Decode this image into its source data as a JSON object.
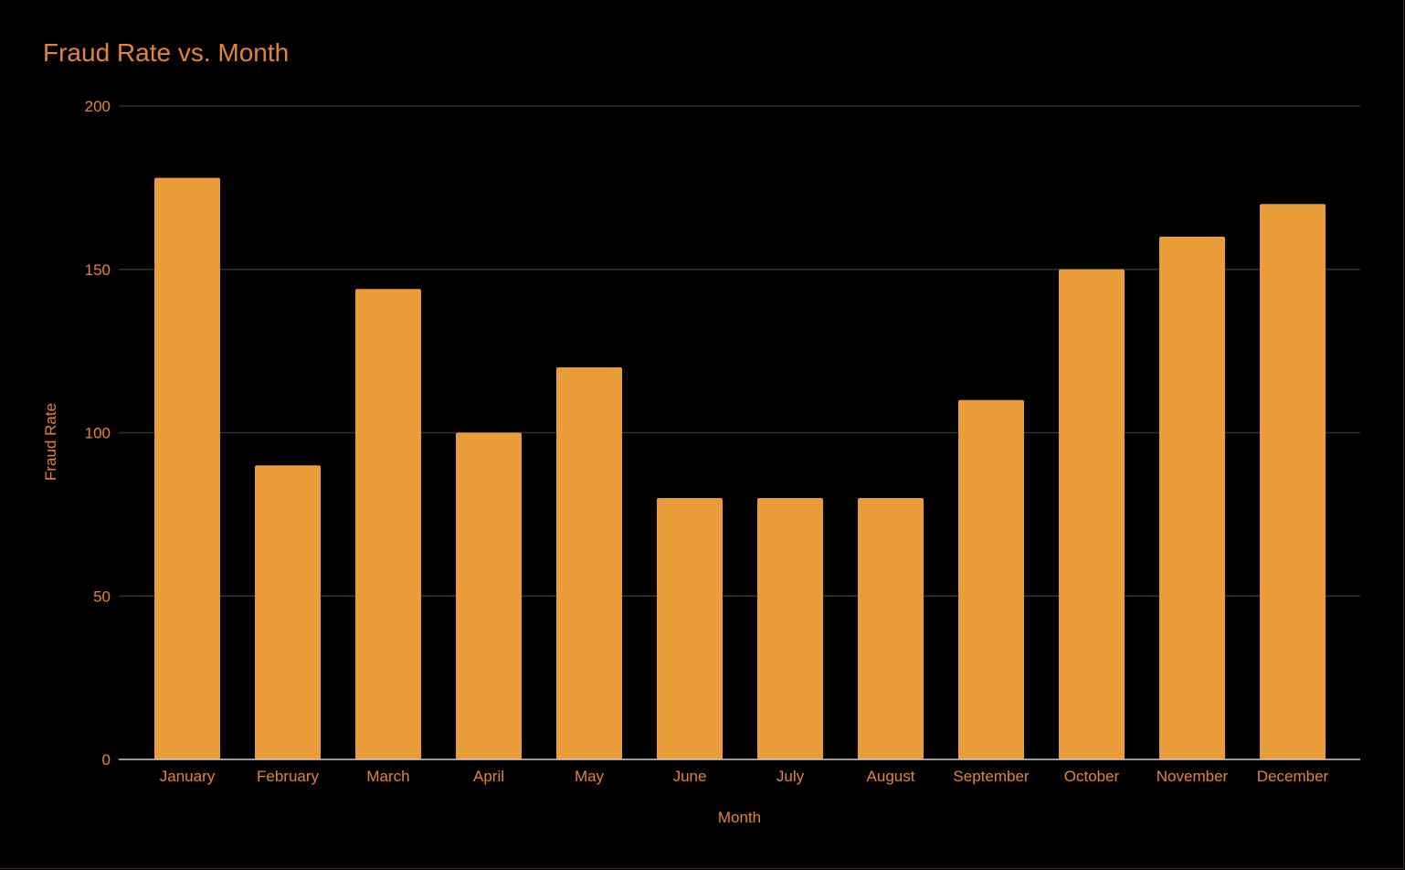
{
  "chart_data": {
    "type": "bar",
    "title": "Fraud Rate vs. Month",
    "xlabel": "Month",
    "ylabel": "Fraud Rate",
    "categories": [
      "January",
      "February",
      "March",
      "April",
      "May",
      "June",
      "July",
      "August",
      "September",
      "October",
      "November",
      "December"
    ],
    "series": [
      {
        "values": [
          178,
          90,
          144,
          100,
          120,
          80,
          80,
          80,
          110,
          150,
          160,
          170
        ]
      }
    ],
    "ylim": [
      0,
      200
    ],
    "yticks": [
      0,
      50,
      100,
      150,
      200
    ],
    "grid": true,
    "legend": "none",
    "colors": {
      "background": "#000000",
      "bar": "#e99c38",
      "text": "#e8823a",
      "grid": "#333333",
      "baseline": "#cccccc"
    }
  }
}
